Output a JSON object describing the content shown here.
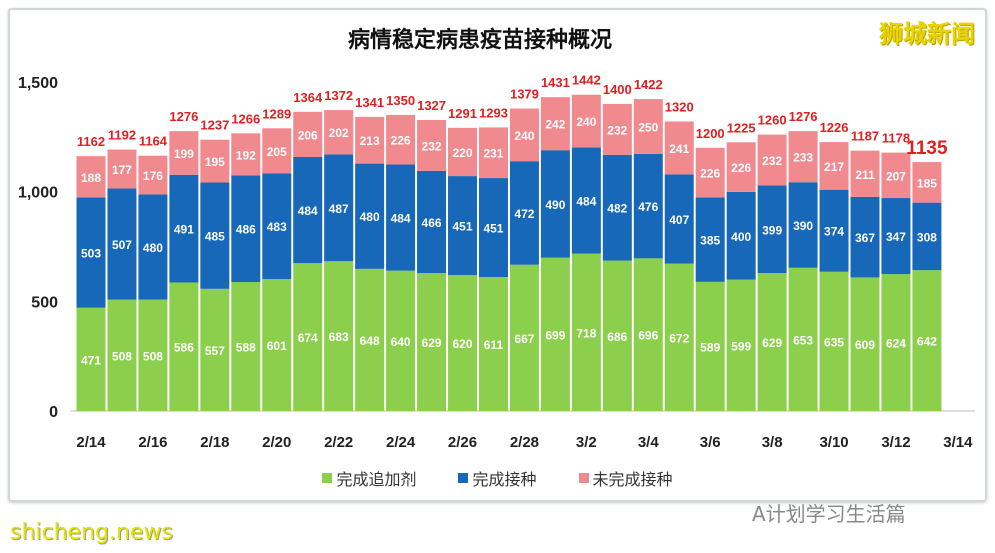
{
  "logo_text": "狮城新闻",
  "watermark": "A计划学习生活篇",
  "site": "shicheng.news",
  "chart_data": {
    "type": "bar",
    "stacked": true,
    "title": "病情稳定病患疫苗接种概况",
    "xlabel": "",
    "ylabel": "",
    "ylim": [
      0,
      1500
    ],
    "yticks": [
      0,
      500,
      1000,
      1500
    ],
    "ytick_labels": [
      "0",
      "500",
      "1,000",
      "1,500"
    ],
    "grid": false,
    "legend": "bottom",
    "categories": [
      "2/14",
      "2/15",
      "2/16",
      "2/17",
      "2/18",
      "2/19",
      "2/20",
      "2/21",
      "2/22",
      "2/23",
      "2/24",
      "2/25",
      "2/26",
      "2/27",
      "2/28",
      "3/1",
      "3/2",
      "3/3",
      "3/4",
      "3/5",
      "3/6",
      "3/7",
      "3/8",
      "3/9",
      "3/10",
      "3/11",
      "3/12",
      "3/13"
    ],
    "xtick_labels": [
      "2/14",
      "2/16",
      "2/18",
      "2/20",
      "2/22",
      "2/24",
      "2/26",
      "2/28",
      "3/2",
      "3/4",
      "3/6",
      "3/8",
      "3/10",
      "3/12",
      "3/14"
    ],
    "series": [
      {
        "name": "完成追加剂",
        "color": "#8ccf4d",
        "values": [
          471,
          508,
          508,
          586,
          557,
          588,
          601,
          674,
          683,
          648,
          640,
          629,
          620,
          611,
          667,
          699,
          718,
          686,
          696,
          672,
          589,
          599,
          629,
          653,
          635,
          609,
          624,
          642
        ]
      },
      {
        "name": "完成接种",
        "color": "#1768b8",
        "values": [
          503,
          507,
          480,
          491,
          485,
          486,
          483,
          484,
          487,
          480,
          484,
          466,
          451,
          451,
          472,
          490,
          484,
          482,
          476,
          407,
          385,
          400,
          399,
          390,
          374,
          367,
          347,
          308
        ]
      },
      {
        "name": "未完成接种",
        "color": "#f08a8e",
        "values": [
          188,
          177,
          176,
          199,
          195,
          192,
          205,
          206,
          202,
          213,
          226,
          232,
          220,
          231,
          240,
          242,
          240,
          232,
          250,
          241,
          226,
          226,
          232,
          233,
          217,
          211,
          207,
          185
        ]
      }
    ],
    "totals": [
      1162,
      1192,
      1164,
      1276,
      1237,
      1266,
      1289,
      1364,
      1372,
      1341,
      1350,
      1327,
      1291,
      1293,
      1379,
      1431,
      1442,
      1400,
      1422,
      1320,
      1200,
      1225,
      1260,
      1276,
      1226,
      1187,
      1178,
      1135
    ],
    "total_label_color": "#e02020"
  }
}
